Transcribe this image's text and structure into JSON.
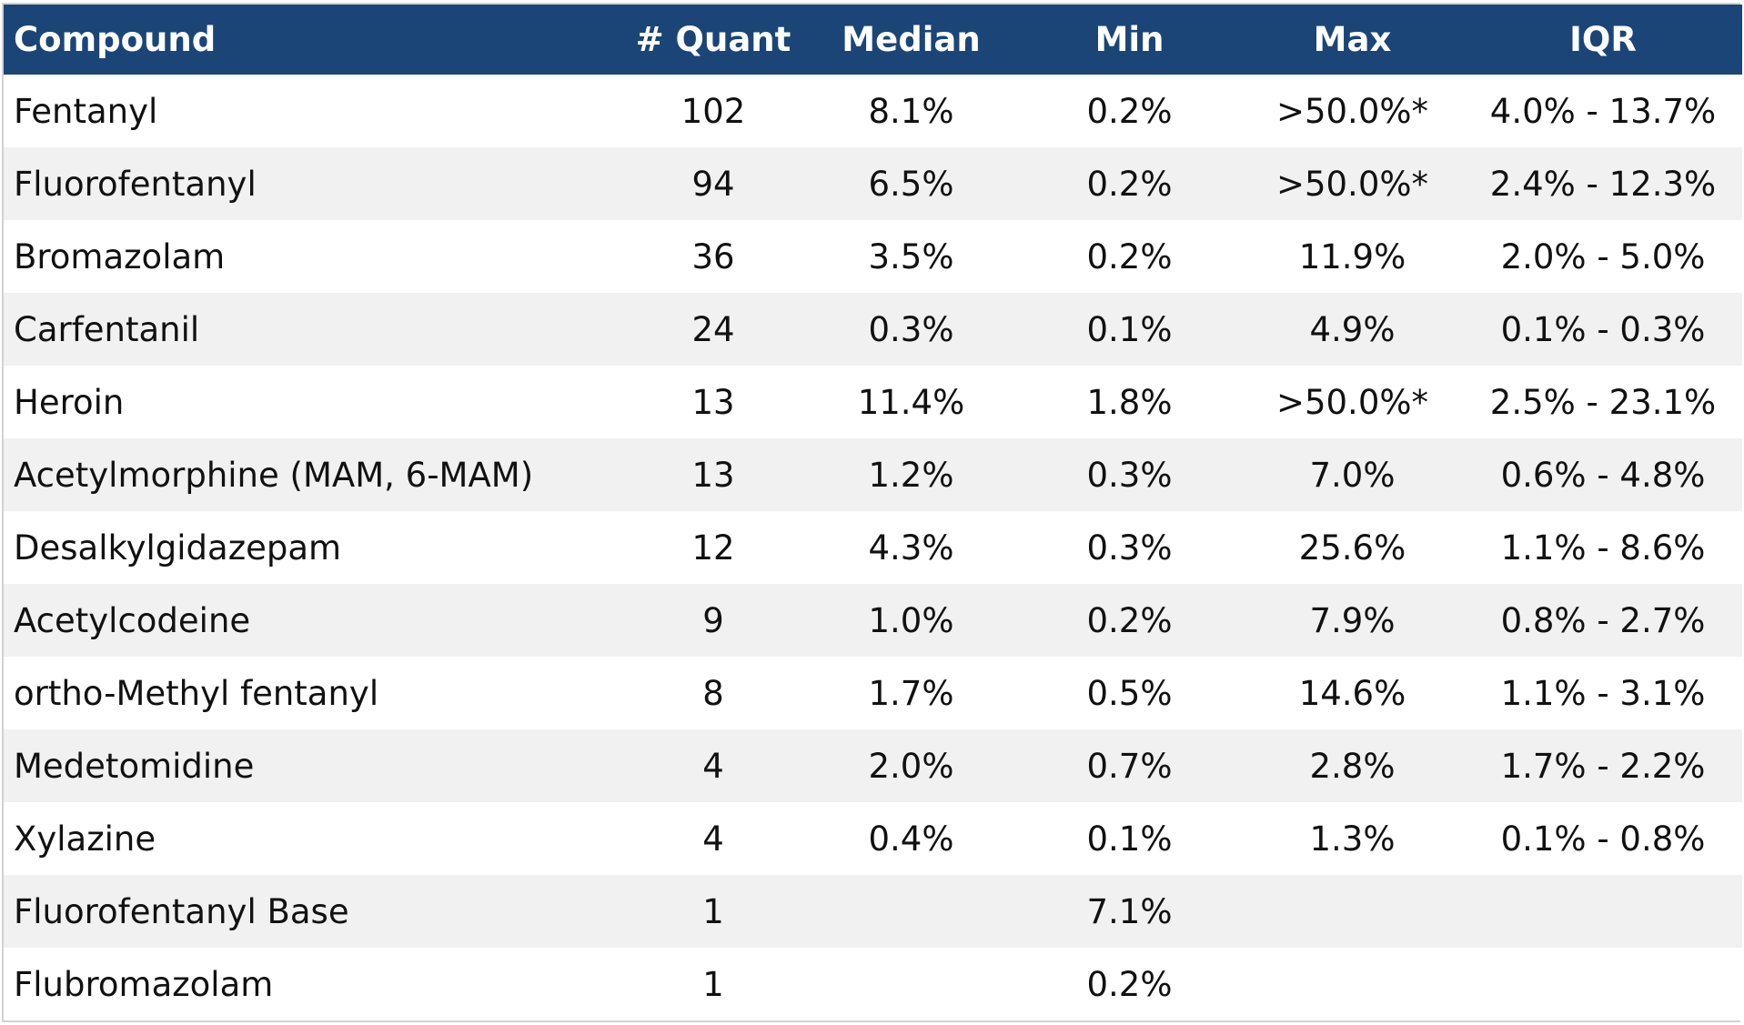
{
  "chart_data": {
    "type": "table",
    "columns": [
      "Compound",
      "# Quant",
      "Median",
      "Min",
      "Max",
      "IQR"
    ],
    "rows": [
      [
        "Fentanyl",
        "102",
        "8.1%",
        "0.2%",
        ">50.0%*",
        "4.0% - 13.7%"
      ],
      [
        "Fluorofentanyl",
        "94",
        "6.5%",
        "0.2%",
        ">50.0%*",
        "2.4% - 12.3%"
      ],
      [
        "Bromazolam",
        "36",
        "3.5%",
        "0.2%",
        "11.9%",
        "2.0% - 5.0%"
      ],
      [
        "Carfentanil",
        "24",
        "0.3%",
        "0.1%",
        "4.9%",
        "0.1% - 0.3%"
      ],
      [
        "Heroin",
        "13",
        "11.4%",
        "1.8%",
        ">50.0%*",
        "2.5% - 23.1%"
      ],
      [
        "Acetylmorphine (MAM, 6-MAM)",
        "13",
        "1.2%",
        "0.3%",
        "7.0%",
        "0.6% - 4.8%"
      ],
      [
        "Desalkylgidazepam",
        "12",
        "4.3%",
        "0.3%",
        "25.6%",
        "1.1% - 8.6%"
      ],
      [
        "Acetylcodeine",
        "9",
        "1.0%",
        "0.2%",
        "7.9%",
        "0.8% - 2.7%"
      ],
      [
        "ortho-Methyl fentanyl",
        "8",
        "1.7%",
        "0.5%",
        "14.6%",
        "1.1% - 3.1%"
      ],
      [
        "Medetomidine",
        "4",
        "2.0%",
        "0.7%",
        "2.8%",
        "1.7% - 2.2%"
      ],
      [
        "Xylazine",
        "4",
        "0.4%",
        "0.1%",
        "1.3%",
        "0.1% - 0.8%"
      ],
      [
        "Fluorofentanyl Base",
        "1",
        "",
        "7.1%",
        "",
        ""
      ],
      [
        "Flubromazolam",
        "1",
        "",
        "0.2%",
        "",
        ""
      ]
    ],
    "header_color": "#1b4577",
    "header_text_color": "#ffffff",
    "stripe_color": "#f1f1f1",
    "row_color": "#ffffff"
  }
}
